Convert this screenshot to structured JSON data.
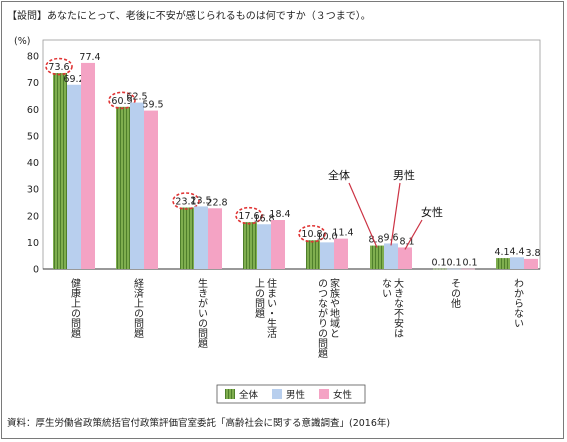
{
  "question": "【設問】あなたにとって、老後に不安が感じられるものは何ですか（３つまで）。",
  "source": "資料：厚生労働省政策統括官付政策評価官室委託「高齢社会に関する意識調査」(2016年)",
  "colors": {
    "all": "#7fae4f",
    "male": "#b8cfee",
    "female": "#f4a3c4",
    "circle": "#e03434",
    "callout": "#cc3344"
  },
  "chart_data": {
    "type": "bar",
    "ylabel": "(%)",
    "ylim": [
      0,
      80
    ],
    "yticks": [
      "0",
      "10",
      "20",
      "30",
      "40",
      "50",
      "60",
      "70",
      "80"
    ],
    "categories": [
      "健康上の問題",
      "経済上の問題",
      "生きがいの問題",
      "住まい・生活上の問題",
      "家族や地域とのつながりの問題",
      "大きな不安はない",
      "その他",
      "わからない"
    ],
    "series": [
      {
        "name": "全体",
        "values": [
          73.6,
          60.9,
          23.1,
          17.6,
          10.8,
          8.8,
          0.1,
          4.1
        ],
        "labels": [
          "73.6",
          "60.9",
          "23.1",
          "17.6",
          "10.8",
          "8.8",
          "0.1",
          "4.1"
        ]
      },
      {
        "name": "男性",
        "values": [
          69.2,
          62.5,
          23.5,
          16.8,
          10.0,
          9.6,
          0.1,
          4.4
        ],
        "labels": [
          "69.2",
          "62.5",
          "23.5",
          "16.8",
          "10.0",
          "9.6",
          "0.1",
          "4.4"
        ]
      },
      {
        "name": "女性",
        "values": [
          77.4,
          59.5,
          22.8,
          18.4,
          11.4,
          8.1,
          0.1,
          3.8
        ],
        "labels": [
          "77.4",
          "59.5",
          "22.8",
          "18.4",
          "11.4",
          "8.1",
          "0.1",
          "3.8"
        ]
      }
    ],
    "circled": "全体",
    "callouts": [
      "全体",
      "男性",
      "女性"
    ],
    "legend": "bottom-center"
  }
}
